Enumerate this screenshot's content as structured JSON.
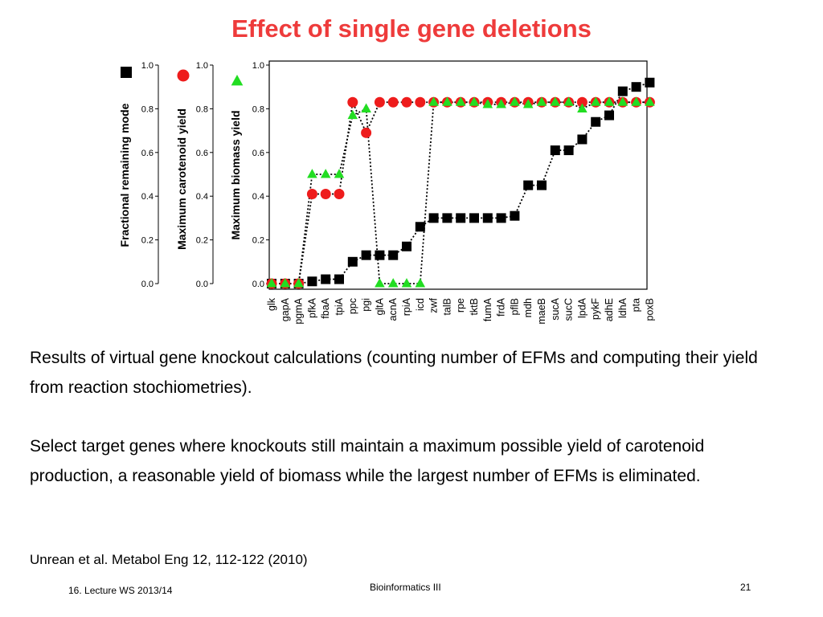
{
  "slide": {
    "title": "Effect of single gene deletions",
    "paragraph1": "Results of virtual gene knockout calculations (counting number of EFMs and computing their yield from reaction stochiometries).",
    "paragraph2": "Select target genes where knockouts still maintain a maximum possible yield of carotenoid production, a reasonable yield of biomass while the largest number of EFMs is eliminated.",
    "citation": "Unrean et al. Metabol Eng 12, 112-122 (2010)",
    "footer_left": "16. Lecture WS 2013/14",
    "footer_center": "Bioinformatics III",
    "footer_right": "21"
  },
  "chart_data": {
    "type": "scatter",
    "categories": [
      "glk",
      "gapA",
      "pgmA",
      "pfkA",
      "fbaA",
      "tpiA",
      "ppc",
      "pgi",
      "gltA",
      "acnA",
      "rpiA",
      "icd",
      "zwf",
      "talB",
      "rpe",
      "tktB",
      "fumA",
      "frdA",
      "pflB",
      "mdh",
      "maeB",
      "sucA",
      "sucC",
      "lpdA",
      "pykF",
      "adhE",
      "ldhA",
      "pta",
      "poxB"
    ],
    "ylim": [
      0,
      1.0
    ],
    "yticks": [
      "0.0",
      "0.2",
      "0.4",
      "0.6",
      "0.8",
      "1.0"
    ],
    "grid": false,
    "series": [
      {
        "name": "Fractional remaining mode",
        "color": "#000000",
        "marker": "square",
        "values": [
          0.0,
          0.0,
          0.0,
          0.01,
          0.02,
          0.02,
          0.1,
          0.13,
          0.13,
          0.13,
          0.17,
          0.26,
          0.3,
          0.3,
          0.3,
          0.3,
          0.3,
          0.3,
          0.31,
          0.45,
          0.45,
          0.61,
          0.61,
          0.66,
          0.74,
          0.77,
          0.88,
          0.9,
          0.92
        ]
      },
      {
        "name": "Maximum carotenoid yield",
        "color": "#ee1c1c",
        "marker": "circle",
        "values": [
          0.0,
          0.0,
          0.0,
          0.41,
          0.41,
          0.41,
          0.83,
          0.69,
          0.83,
          0.83,
          0.83,
          0.83,
          0.83,
          0.83,
          0.83,
          0.83,
          0.83,
          0.83,
          0.83,
          0.83,
          0.83,
          0.83,
          0.83,
          0.83,
          0.83,
          0.83,
          0.83,
          0.83,
          0.83
        ]
      },
      {
        "name": "Maximum biomass yield",
        "color": "#22dd22",
        "marker": "triangle",
        "values": [
          0.0,
          0.0,
          0.0,
          0.5,
          0.5,
          0.5,
          0.77,
          0.8,
          0.0,
          0.0,
          0.0,
          0.0,
          0.83,
          0.83,
          0.83,
          0.83,
          0.82,
          0.82,
          0.83,
          0.82,
          0.83,
          0.83,
          0.83,
          0.8,
          0.83,
          0.83,
          0.83,
          0.83,
          0.83
        ]
      }
    ]
  }
}
